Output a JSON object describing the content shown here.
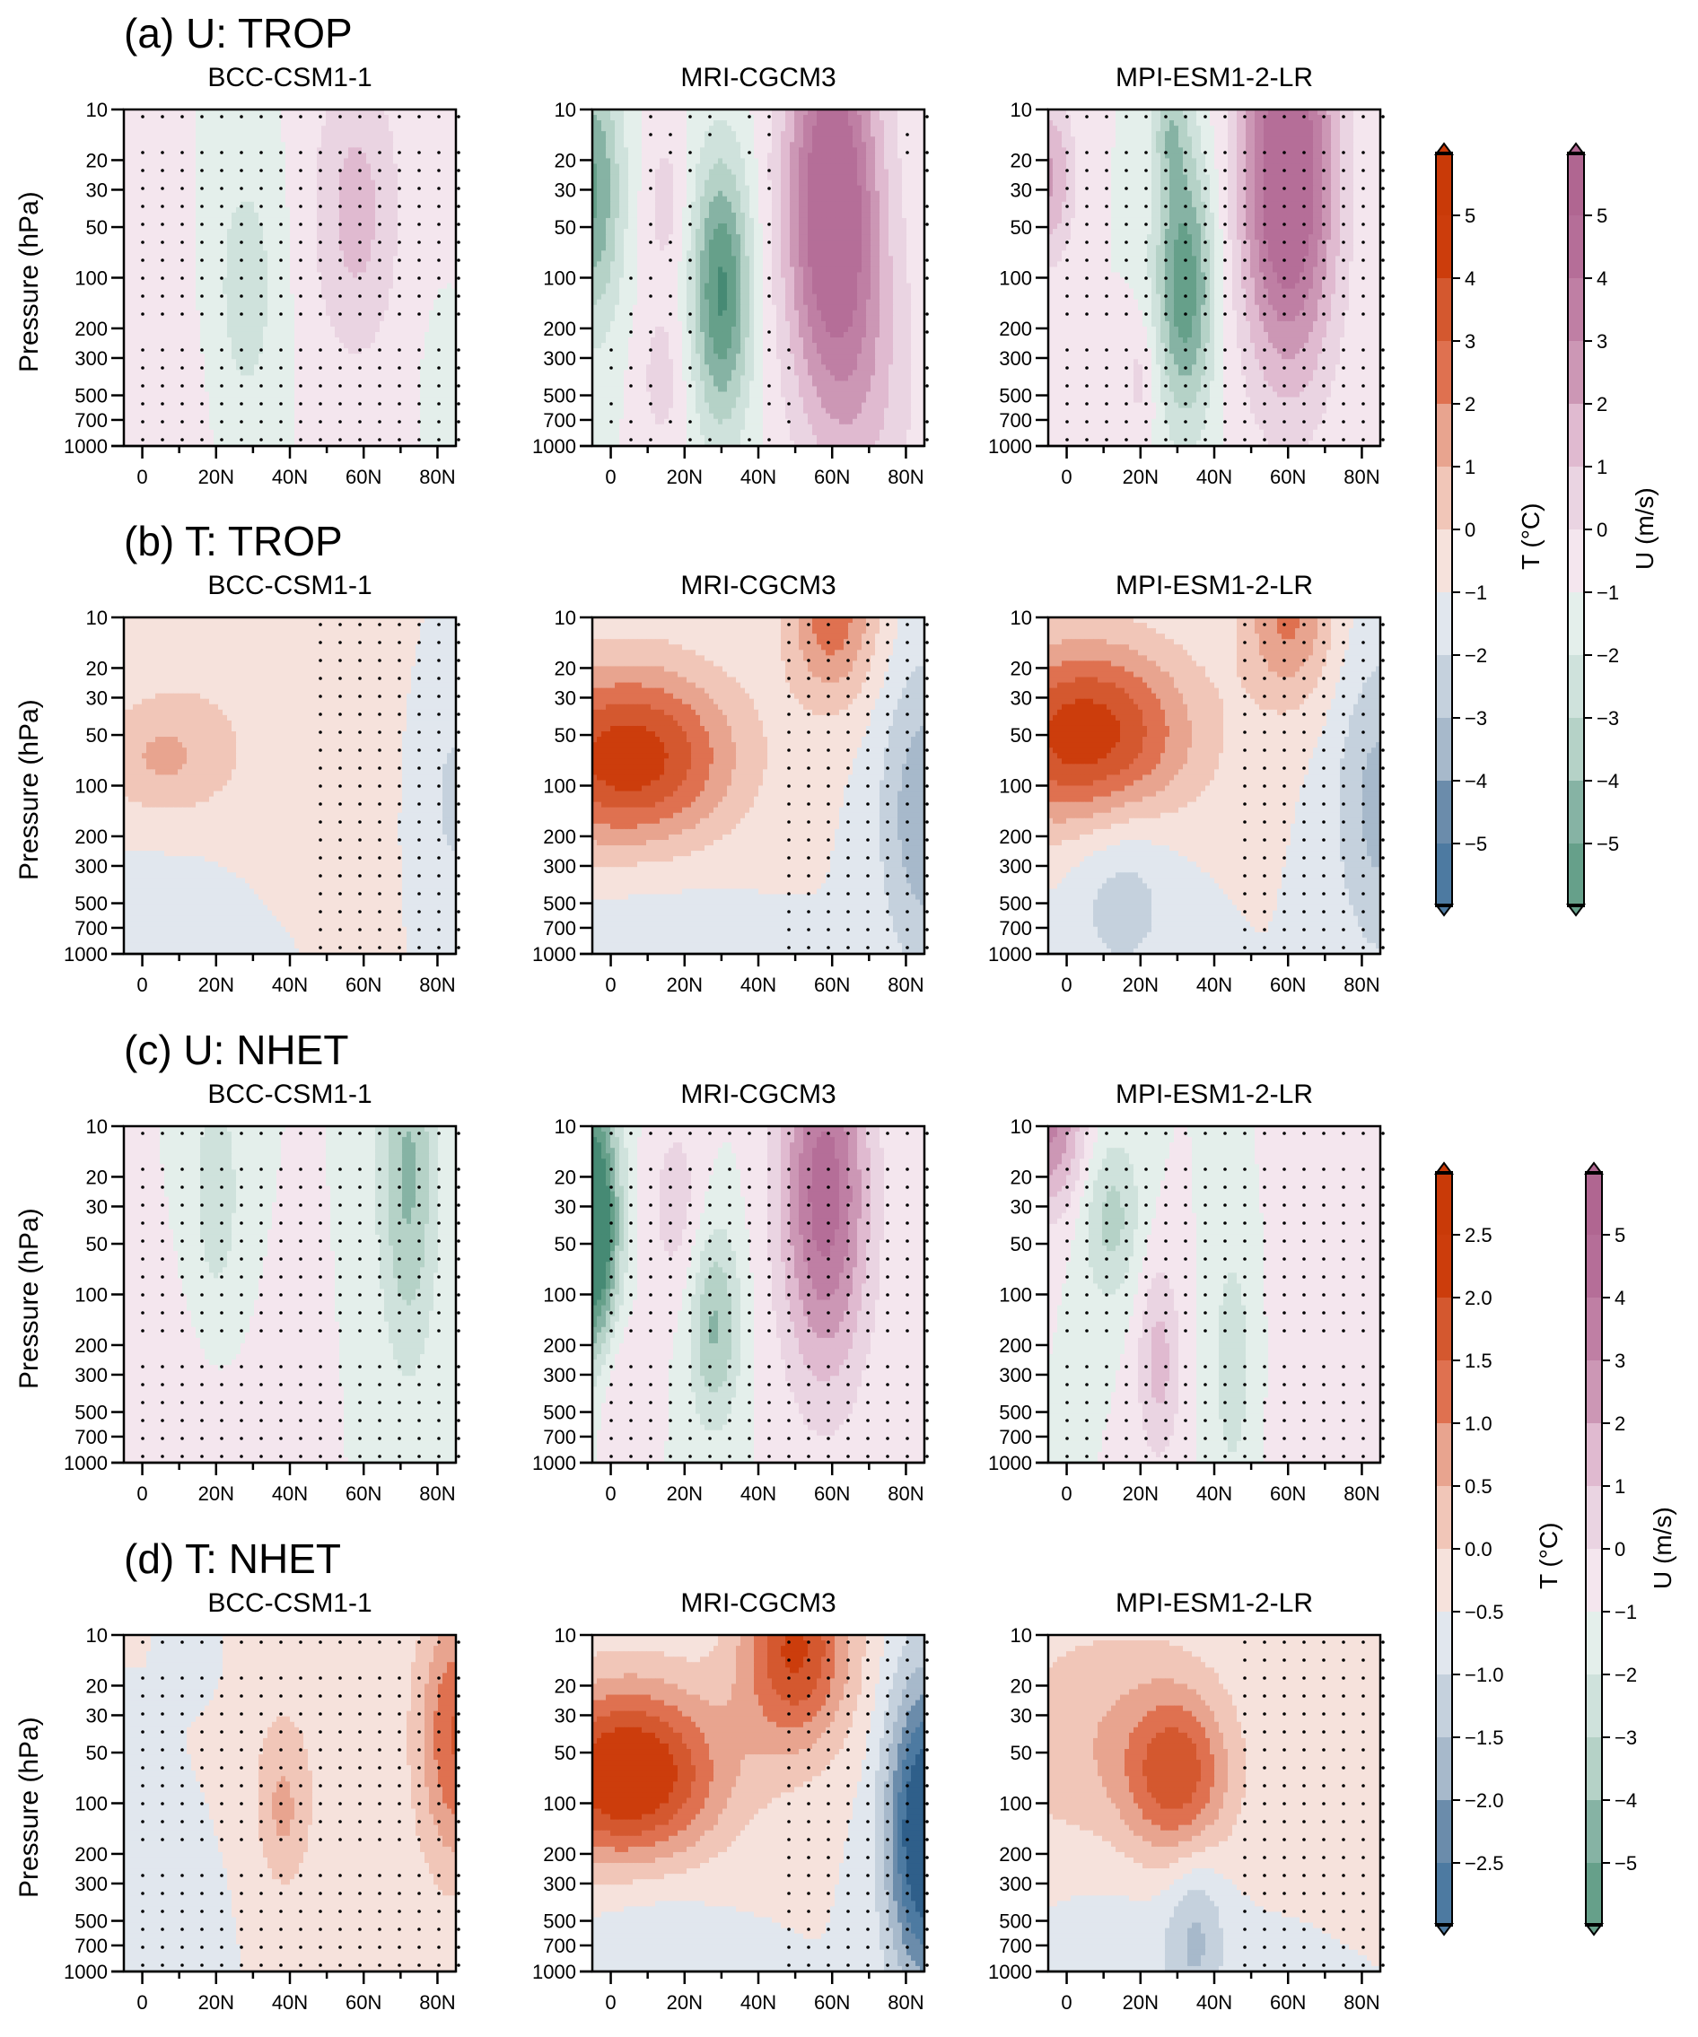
{
  "rows": [
    {
      "title": "(a) U: TROP",
      "var": "U",
      "scale": "u_main"
    },
    {
      "title": "(b) T: TROP",
      "var": "T",
      "scale": "t_main"
    },
    {
      "title": "(c) U: NHET",
      "var": "U",
      "scale": "u_main"
    },
    {
      "title": "(d) T: NHET",
      "var": "T",
      "scale": "t_nhet"
    }
  ],
  "models": [
    "BCC-CSM1-1",
    "MRI-CGCM3",
    "MPI-ESM1-2-LR"
  ],
  "ylabel": "Pressure (hPa)",
  "y_ticks": [
    "10",
    "20",
    "30",
    "50",
    "100",
    "200",
    "300",
    "500",
    "700",
    "1000"
  ],
  "x_ticks": [
    "0",
    "20N",
    "40N",
    "60N",
    "80N"
  ],
  "colorbars": [
    {
      "id": "t_main",
      "title": "T (°C)",
      "labels": [
        "5",
        "4",
        "3",
        "2",
        "1",
        "0",
        "−1",
        "−2",
        "−3",
        "−4",
        "−5"
      ],
      "levels": [
        5,
        4,
        3,
        2,
        1,
        0,
        -1,
        -2,
        -3,
        -4,
        -5
      ]
    },
    {
      "id": "u_main",
      "title": "U (m/s)",
      "labels": [
        "5",
        "4",
        "3",
        "2",
        "1",
        "0",
        "−1",
        "−2",
        "−3",
        "−4",
        "−5"
      ],
      "levels": [
        5,
        4,
        3,
        2,
        1,
        0,
        -1,
        -2,
        -3,
        -4,
        -5
      ]
    },
    {
      "id": "t_nhet",
      "title": "T (°C)",
      "labels": [
        "2.5",
        "2.0",
        "1.5",
        "1.0",
        "0.5",
        "0.0",
        "−0.5",
        "−1.0",
        "−1.5",
        "−2.0",
        "−2.5"
      ],
      "levels": [
        2.5,
        2.0,
        1.5,
        1.0,
        0.5,
        0.0,
        -0.5,
        -1.0,
        -1.5,
        -2.0,
        -2.5
      ]
    },
    {
      "id": "u_nhet",
      "title": "U (m/s)",
      "labels": [
        "5",
        "4",
        "3",
        "2",
        "1",
        "0",
        "−1",
        "−2",
        "−3",
        "−4",
        "−5"
      ],
      "levels": [
        5,
        4,
        3,
        2,
        1,
        0,
        -1,
        -2,
        -3,
        -4,
        -5
      ]
    }
  ],
  "palettes": {
    "T": [
      "#2f5f8a",
      "#3b6b95",
      "#4d7aa1",
      "#6b8cab",
      "#a7b9cb",
      "#c5d1dd",
      "#e1e7ee",
      "#f6e2dc",
      "#f1c6b8",
      "#e8a48f",
      "#df7150",
      "#d4582f",
      "#cc3d0c",
      "#c93a08"
    ],
    "U": [
      "#468a74",
      "#4f9179",
      "#66a08a",
      "#86b3a4",
      "#b5d2c7",
      "#cfe2dc",
      "#e4efeb",
      "#f4e6ee",
      "#ead4e2",
      "#e0bad0",
      "#cc97b5",
      "#bf7fa4",
      "#b56e98",
      "#b06691"
    ]
  },
  "chart_data": {
    "type": "heatmap",
    "description": "Zonal-mean latitude-pressure cross sections of zonal wind (U) and temperature (T) responses; stippling marks significance",
    "x": {
      "label": "",
      "range": [
        -5,
        85
      ],
      "units": "degrees latitude"
    },
    "y": {
      "label": "Pressure (hPa)",
      "range": [
        1000,
        10
      ],
      "scale": "log"
    },
    "panels": [
      {
        "row": "(a) U: TROP",
        "model": "BCC-CSM1-1",
        "features": [
          {
            "lat": 58,
            "p": 40,
            "amp": 2.4,
            "wlat": 12,
            "wlp": 0.9
          },
          {
            "lat": 28,
            "p": 120,
            "amp": -1.6,
            "wlat": 9,
            "wlp": 0.8
          },
          {
            "lat": 0,
            "p": 30,
            "amp": 0.6,
            "wlat": 10,
            "wlp": 0.5
          },
          {
            "lat": 0,
            "p": 500,
            "amp": 0.5,
            "wlat": 20,
            "wlp": 0.8
          },
          {
            "lat": 80,
            "p": 400,
            "amp": -0.3,
            "wlat": 4,
            "wlp": 0.4
          }
        ],
        "stipple": "dense"
      },
      {
        "row": "(a) U: TROP",
        "model": "MRI-CGCM3",
        "features": [
          {
            "lat": 60,
            "p": 35,
            "amp": 6.5,
            "wlat": 13,
            "wlp": 1.2
          },
          {
            "lat": 30,
            "p": 120,
            "amp": -5.2,
            "wlat": 8,
            "wlp": 0.8
          },
          {
            "lat": -5,
            "p": 30,
            "amp": -4.2,
            "wlat": 8,
            "wlp": 0.8
          },
          {
            "lat": 14,
            "p": 400,
            "amp": 1.4,
            "wlat": 7,
            "wlp": 0.5
          },
          {
            "lat": 15,
            "p": 35,
            "amp": 1.4,
            "wlat": 6,
            "wlp": 0.5
          },
          {
            "lat": 70,
            "p": 500,
            "amp": 1.5,
            "wlat": 15,
            "wlp": 1.0
          }
        ],
        "stipple": "sparse"
      },
      {
        "row": "(a) U: TROP",
        "model": "MPI-ESM1-2-LR",
        "features": [
          {
            "lat": 60,
            "p": 25,
            "amp": 6.8,
            "wlat": 13,
            "wlp": 1.2
          },
          {
            "lat": 32,
            "p": 110,
            "amp": -4.8,
            "wlat": 8,
            "wlp": 0.8
          },
          {
            "lat": -5,
            "p": 25,
            "amp": 3.2,
            "wlat": 7,
            "wlp": 0.5
          },
          {
            "lat": 20,
            "p": 400,
            "amp": 1.4,
            "wlat": 5,
            "wlp": 0.4
          },
          {
            "lat": 28,
            "p": 12,
            "amp": -2.2,
            "wlat": 5,
            "wlp": 0.4
          }
        ],
        "stipple": "dense"
      },
      {
        "row": "(b) T: TROP",
        "model": "BCC-CSM1-1",
        "features": [
          {
            "lat": 5,
            "p": 70,
            "amp": 1.9,
            "wlat": 18,
            "wlp": 0.35
          },
          {
            "lat": 20,
            "p": 40,
            "amp": 0.7,
            "wlat": 30,
            "wlp": 1.2
          },
          {
            "lat": 85,
            "p": 120,
            "amp": -1.3,
            "wlat": 8,
            "wlp": 0.6
          },
          {
            "lat": 10,
            "p": 600,
            "amp": -0.6,
            "wlat": 25,
            "wlp": 1.0
          }
        ],
        "stipple": "right"
      },
      {
        "row": "(b) T: TROP",
        "model": "MRI-CGCM3",
        "features": [
          {
            "lat": 5,
            "p": 70,
            "amp": 6.0,
            "wlat": 28,
            "wlp": 0.55
          },
          {
            "lat": 60,
            "p": 10,
            "amp": 3.6,
            "wlat": 12,
            "wlp": 0.5
          },
          {
            "lat": 85,
            "p": 150,
            "amp": -2.8,
            "wlat": 12,
            "wlp": 0.9
          },
          {
            "lat": 10,
            "p": 500,
            "amp": -0.7,
            "wlat": 25,
            "wlp": 0.9
          }
        ],
        "stipple": "right"
      },
      {
        "row": "(b) T: TROP",
        "model": "MPI-ESM1-2-LR",
        "features": [
          {
            "lat": 5,
            "p": 50,
            "amp": 5.8,
            "wlat": 28,
            "wlp": 0.55
          },
          {
            "lat": 60,
            "p": 10,
            "amp": 3.2,
            "wlat": 12,
            "wlp": 0.5
          },
          {
            "lat": 85,
            "p": 130,
            "amp": -2.4,
            "wlat": 12,
            "wlp": 0.9
          },
          {
            "lat": 15,
            "p": 400,
            "amp": -1.6,
            "wlat": 15,
            "wlp": 0.6
          }
        ],
        "stipple": "right"
      },
      {
        "row": "(c) U: NHET",
        "model": "BCC-CSM1-1",
        "features": [
          {
            "lat": 72,
            "p": 20,
            "amp": -3.2,
            "wlat": 8,
            "wlp": 1.1
          },
          {
            "lat": 20,
            "p": 30,
            "amp": -1.6,
            "wlat": 8,
            "wlp": 0.9
          },
          {
            "lat": 15,
            "p": 500,
            "amp": 0.6,
            "wlat": 18,
            "wlp": 1.0
          },
          {
            "lat": -5,
            "p": 40,
            "amp": 0.5,
            "wlat": 4,
            "wlp": 0.5
          }
        ],
        "stipple": "dense"
      },
      {
        "row": "(c) U: NHET",
        "model": "MRI-CGCM3",
        "features": [
          {
            "lat": 58,
            "p": 25,
            "amp": 5.6,
            "wlat": 12,
            "wlp": 1.1
          },
          {
            "lat": -5,
            "p": 40,
            "amp": -8.0,
            "wlat": 7,
            "wlp": 0.8
          },
          {
            "lat": 28,
            "p": 150,
            "amp": -3.2,
            "wlat": 7,
            "wlp": 0.6
          },
          {
            "lat": 18,
            "p": 30,
            "amp": 1.5,
            "wlat": 8,
            "wlp": 0.6
          },
          {
            "lat": 0,
            "p": 300,
            "amp": 1.4,
            "wlat": 8,
            "wlp": 0.5
          }
        ],
        "stipple": "dense"
      },
      {
        "row": "(c) U: NHET",
        "model": "MPI-ESM1-2-LR",
        "features": [
          {
            "lat": -5,
            "p": 10,
            "amp": 4.2,
            "wlat": 10,
            "wlp": 0.5
          },
          {
            "lat": 12,
            "p": 35,
            "amp": -2.4,
            "wlat": 8,
            "wlp": 0.5
          },
          {
            "lat": 25,
            "p": 250,
            "amp": 2.4,
            "wlat": 6,
            "wlp": 0.6
          },
          {
            "lat": 45,
            "p": 250,
            "amp": -1.6,
            "wlat": 6,
            "wlp": 0.8
          },
          {
            "lat": 70,
            "p": 300,
            "amp": 0.5,
            "wlat": 15,
            "wlp": 1.5
          }
        ],
        "stipple": "dense"
      },
      {
        "row": "(d) T: NHET",
        "model": "BCC-CSM1-1",
        "features": [
          {
            "lat": 85,
            "p": 40,
            "amp": 2.0,
            "wlat": 10,
            "wlp": 0.8
          },
          {
            "lat": 38,
            "p": 110,
            "amp": 0.8,
            "wlat": 6,
            "wlp": 0.4
          },
          {
            "lat": 40,
            "p": 40,
            "amp": 0.4,
            "wlat": 30,
            "wlp": 1.5
          },
          {
            "lat": 5,
            "p": 500,
            "amp": -0.5,
            "wlat": 20,
            "wlp": 1.0
          },
          {
            "lat": 15,
            "p": 13,
            "amp": -0.5,
            "wlat": 8,
            "wlp": 0.3
          }
        ],
        "stipple": "dense"
      },
      {
        "row": "(d) T: NHET",
        "model": "MRI-CGCM3",
        "features": [
          {
            "lat": 5,
            "p": 70,
            "amp": 3.4,
            "wlat": 25,
            "wlp": 0.55
          },
          {
            "lat": 50,
            "p": 12,
            "amp": 2.6,
            "wlat": 15,
            "wlp": 0.6
          },
          {
            "lat": 85,
            "p": 150,
            "amp": -3.4,
            "wlat": 10,
            "wlp": 0.9
          },
          {
            "lat": 10,
            "p": 500,
            "amp": -0.5,
            "wlat": 20,
            "wlp": 0.8
          }
        ],
        "stipple": "right"
      },
      {
        "row": "(d) T: NHET",
        "model": "MPI-ESM1-2-LR",
        "features": [
          {
            "lat": 30,
            "p": 70,
            "amp": 2.0,
            "wlat": 14,
            "wlp": 0.5
          },
          {
            "lat": 10,
            "p": 50,
            "amp": 1.0,
            "wlat": 30,
            "wlp": 0.8
          },
          {
            "lat": 35,
            "p": 600,
            "amp": -1.0,
            "wlat": 8,
            "wlp": 0.5
          },
          {
            "lat": 15,
            "p": 500,
            "amp": -0.4,
            "wlat": 25,
            "wlp": 1.0
          }
        ],
        "stipple": "right"
      }
    ]
  }
}
